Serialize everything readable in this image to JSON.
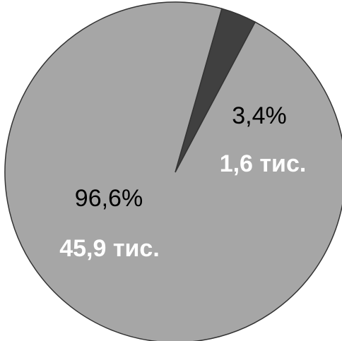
{
  "chart_data": {
    "type": "pie",
    "slices": [
      {
        "percent_label": "3,4%",
        "value_label": "1,6 тис.",
        "value": 1.6,
        "percent": 3.4,
        "color": "#404040"
      },
      {
        "percent_label": "96,6%",
        "value_label": "45,9 тис.",
        "value": 45.9,
        "percent": 96.6,
        "color": "#a6a6a6"
      }
    ],
    "legend": "none"
  }
}
